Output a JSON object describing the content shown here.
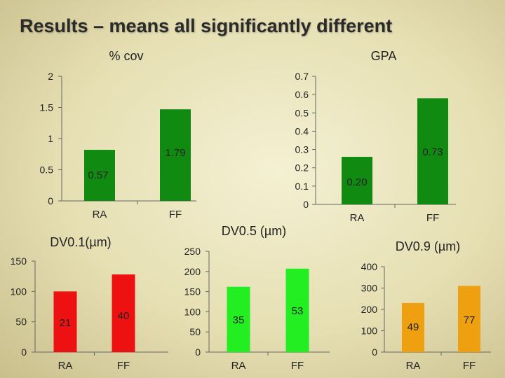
{
  "slide": {
    "title": "Results – means all significantly different"
  },
  "chart_data": [
    {
      "id": "cov",
      "type": "bar",
      "title": "% cov",
      "categories": [
        "RA",
        "FF"
      ],
      "values": [
        0.82,
        1.47
      ],
      "data_labels": [
        "0.57",
        "1.79"
      ],
      "ylim": [
        0,
        2
      ],
      "yticks": [
        0,
        0.5,
        1,
        1.5,
        2
      ],
      "ytick_labels": [
        "0",
        "0.5",
        "1",
        "1.5",
        "2"
      ],
      "axis_side": "left",
      "color": "#118a11"
    },
    {
      "id": "gpa",
      "type": "bar",
      "title": "GPA",
      "categories": [
        "RA",
        "FF"
      ],
      "values": [
        0.26,
        0.58
      ],
      "data_labels": [
        "0.20",
        "0.73"
      ],
      "ylim": [
        0,
        0.7
      ],
      "yticks": [
        0,
        0.1,
        0.2,
        0.3,
        0.4,
        0.5,
        0.6,
        0.7
      ],
      "ytick_labels": [
        "0",
        "0.1",
        "0.2",
        "0.3",
        "0.4",
        "0.5",
        "0.6",
        "0.7"
      ],
      "axis_side": "left",
      "color": "#118a11"
    },
    {
      "id": "dv01",
      "type": "bar",
      "title": "DV0.1(µm)",
      "categories": [
        "RA",
        "FF"
      ],
      "values": [
        100,
        128
      ],
      "data_labels": [
        "21",
        "40"
      ],
      "ylim": [
        0,
        150
      ],
      "yticks": [
        0,
        50,
        100,
        150
      ],
      "ytick_labels": [
        "0",
        "50",
        "100",
        "150"
      ],
      "axis_side": "left",
      "color": "#ee1111"
    },
    {
      "id": "dv05",
      "type": "bar",
      "title": "DV0.5 (µm)",
      "categories": [
        "RA",
        "FF"
      ],
      "values": [
        162,
        207
      ],
      "data_labels": [
        "35",
        "53"
      ],
      "ylim": [
        0,
        250
      ],
      "yticks": [
        0,
        50,
        100,
        150,
        200,
        250
      ],
      "ytick_labels": [
        "0",
        "50",
        "100",
        "150",
        "200",
        "250"
      ],
      "axis_side": "left",
      "color": "#22ee22"
    },
    {
      "id": "dv09",
      "type": "bar",
      "title": "DV0.9 (µm)",
      "categories": [
        "RA",
        "FF"
      ],
      "values": [
        230,
        310
      ],
      "data_labels": [
        "49",
        "77"
      ],
      "ylim": [
        0,
        400
      ],
      "yticks": [
        0,
        100,
        200,
        300,
        400
      ],
      "ytick_labels": [
        "0",
        "100",
        "200",
        "300",
        "400"
      ],
      "axis_side": "left",
      "color": "#eea010"
    }
  ]
}
